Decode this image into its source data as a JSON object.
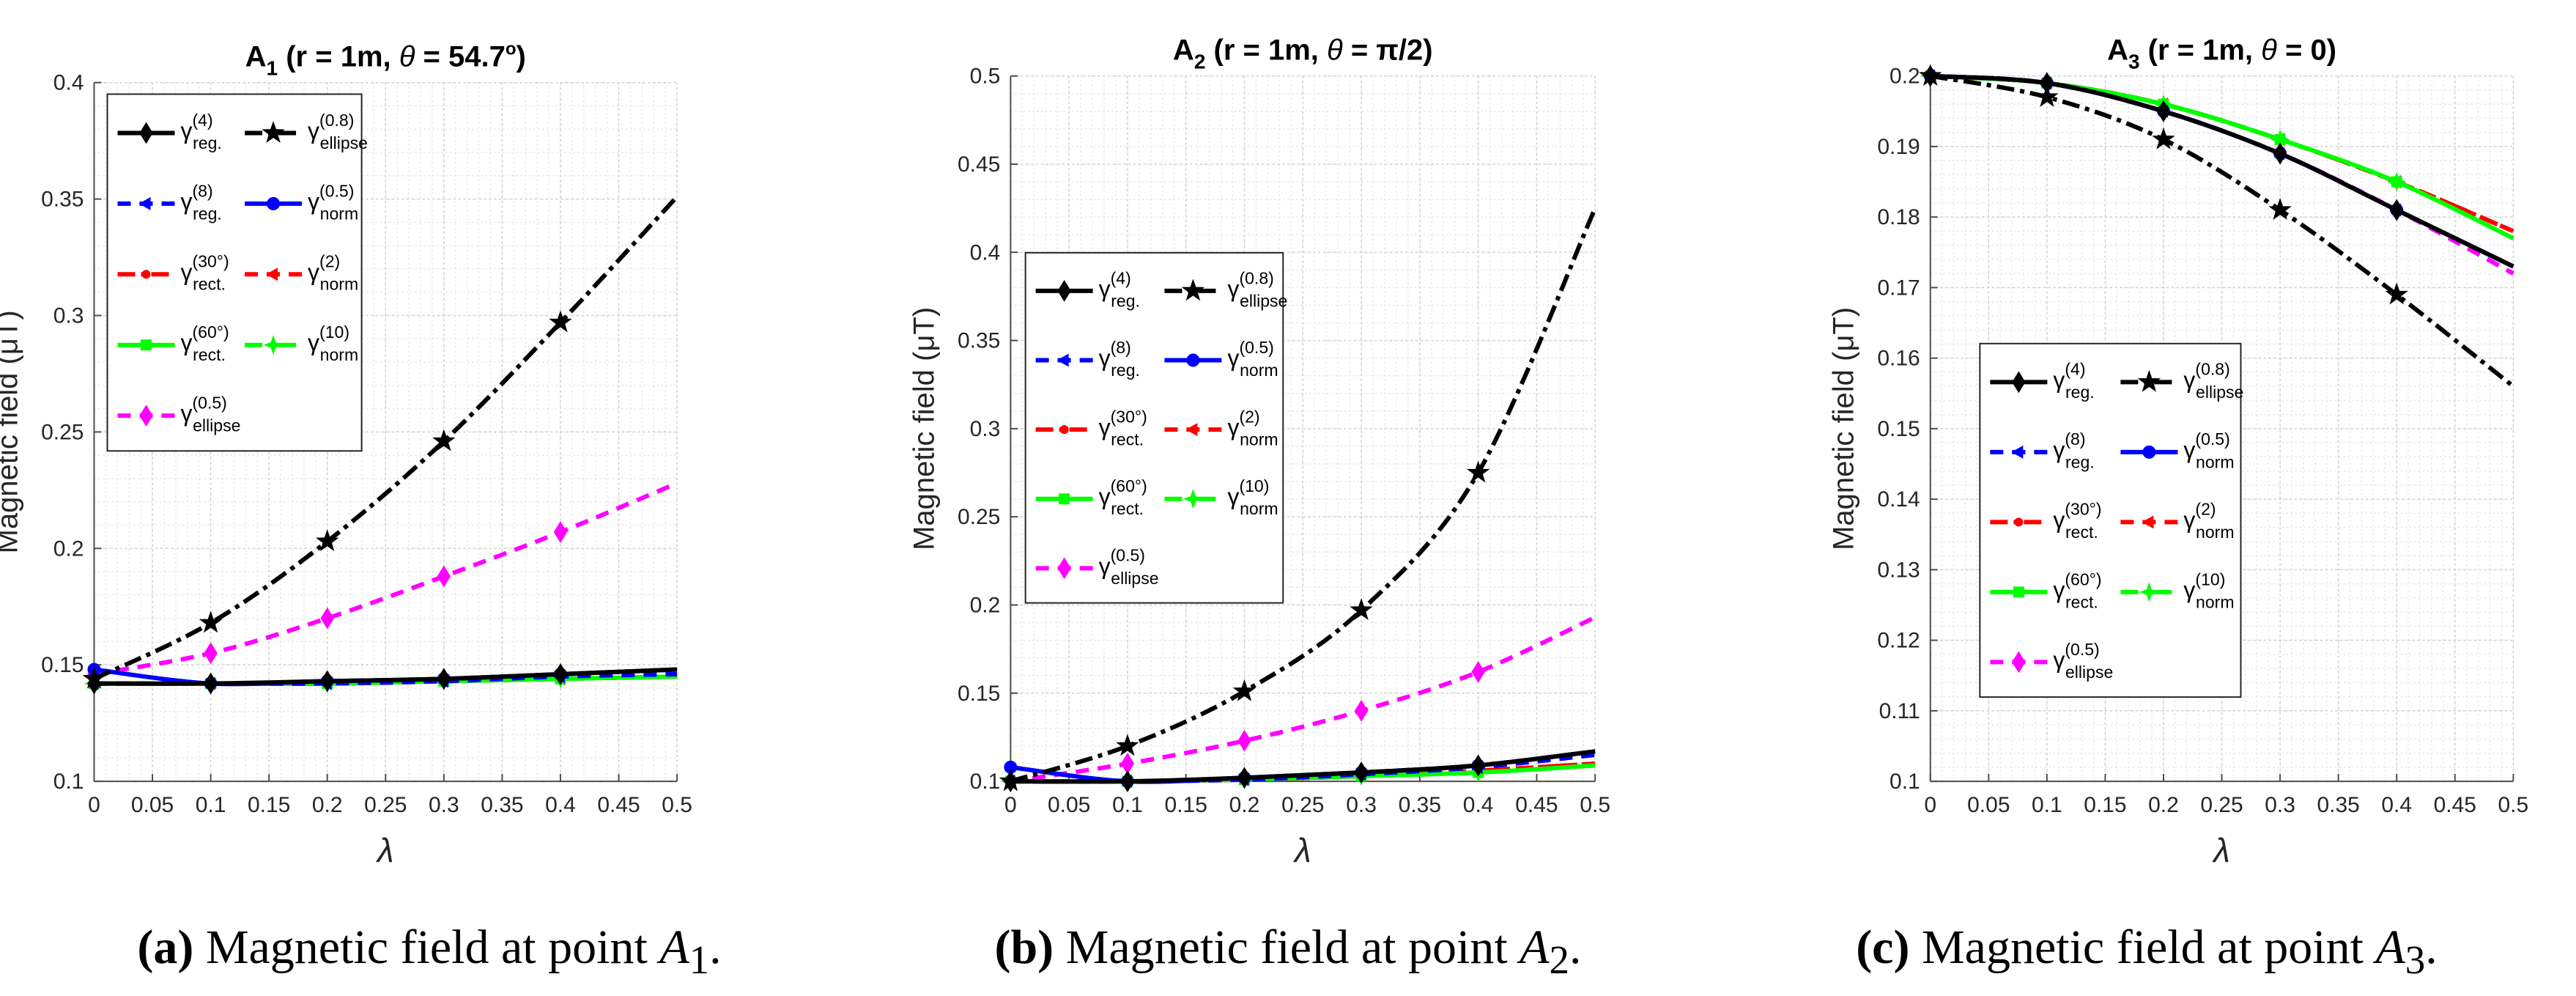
{
  "chart_data": [
    {
      "type": "line",
      "title": "A1 (r = 1m, θ = 54.7°)",
      "title_parts": {
        "main": "A",
        "sub": "1",
        "rest": " (r = 1m, ",
        "theta": "θ",
        "eq": " = 54.7",
        "deg": "o",
        "close": ")"
      },
      "xlabel": "λ",
      "ylabel": "Magnetic field (μT)",
      "xlim": [
        0,
        0.5
      ],
      "ylim": [
        0.1,
        0.4
      ],
      "xticks": [
        "0",
        "0.05",
        "0.1",
        "0.15",
        "0.2",
        "0.25",
        "0.3",
        "0.35",
        "0.4",
        "0.45",
        "0.5"
      ],
      "yticks": [
        "0.1",
        "0.15",
        "0.2",
        "0.25",
        "0.3",
        "0.35",
        "0.4"
      ],
      "grid": true,
      "legend_placement": "top-left",
      "series": [
        {
          "key": "reg4",
          "x": [
            0,
            0.1,
            0.2,
            0.3,
            0.4,
            0.5
          ],
          "y": [
            0.142,
            0.142,
            0.143,
            0.144,
            0.146,
            0.148
          ]
        },
        {
          "key": "reg8",
          "x": [
            0,
            0.1,
            0.2,
            0.3,
            0.4,
            0.5
          ],
          "y": [
            0.142,
            0.142,
            0.142,
            0.143,
            0.145,
            0.146
          ]
        },
        {
          "key": "rect30",
          "x": [
            0,
            0.1,
            0.2,
            0.3,
            0.4,
            0.5
          ],
          "y": [
            0.142,
            0.142,
            0.142,
            0.143,
            0.144,
            0.145
          ]
        },
        {
          "key": "rect60",
          "x": [
            0,
            0.1,
            0.2,
            0.3,
            0.4,
            0.5
          ],
          "y": [
            0.142,
            0.142,
            0.142,
            0.143,
            0.144,
            0.145
          ]
        },
        {
          "key": "ellipse05",
          "x": [
            0,
            0.1,
            0.2,
            0.3,
            0.4,
            0.5
          ],
          "y": [
            0.146,
            0.155,
            0.17,
            0.188,
            0.207,
            0.228
          ]
        },
        {
          "key": "ellipse08",
          "x": [
            0,
            0.1,
            0.2,
            0.3,
            0.4,
            0.5
          ],
          "y": [
            0.144,
            0.168,
            0.203,
            0.246,
            0.297,
            0.351
          ]
        },
        {
          "key": "norm05",
          "x": [
            0,
            0.1,
            0.2,
            0.3,
            0.4,
            0.5
          ],
          "y": [
            0.148,
            0.142,
            0.143,
            0.144,
            0.146,
            0.148
          ]
        },
        {
          "key": "norm2",
          "x": [
            0,
            0.1,
            0.2,
            0.3,
            0.4,
            0.5
          ],
          "y": [
            0.142,
            0.142,
            0.142,
            0.143,
            0.144,
            0.145
          ]
        },
        {
          "key": "norm10",
          "x": [
            0,
            0.1,
            0.2,
            0.3,
            0.4,
            0.5
          ],
          "y": [
            0.142,
            0.142,
            0.142,
            0.143,
            0.144,
            0.145
          ]
        }
      ]
    },
    {
      "type": "line",
      "title": "A2 (r = 1m, θ = π/2)",
      "title_parts": {
        "main": "A",
        "sub": "2",
        "rest": " (r = 1m, ",
        "theta": "θ",
        "eq": " = π/2",
        "deg": "",
        "close": ")"
      },
      "xlabel": "λ",
      "ylabel": "Magnetic field (μT)",
      "xlim": [
        0,
        0.5
      ],
      "ylim": [
        0.1,
        0.5
      ],
      "xticks": [
        "0",
        "0.05",
        "0.1",
        "0.15",
        "0.2",
        "0.25",
        "0.3",
        "0.35",
        "0.4",
        "0.45",
        "0.5"
      ],
      "yticks": [
        "0.1",
        "0.15",
        "0.2",
        "0.25",
        "0.3",
        "0.35",
        "0.4",
        "0.45",
        "0.5"
      ],
      "grid": true,
      "legend_placement": "upper-left",
      "series": [
        {
          "key": "reg4",
          "x": [
            0,
            0.1,
            0.2,
            0.3,
            0.4,
            0.5
          ],
          "y": [
            0.1,
            0.1,
            0.102,
            0.105,
            0.109,
            0.117
          ]
        },
        {
          "key": "reg8",
          "x": [
            0,
            0.1,
            0.2,
            0.3,
            0.4,
            0.5
          ],
          "y": [
            0.1,
            0.1,
            0.101,
            0.104,
            0.108,
            0.115
          ]
        },
        {
          "key": "rect30",
          "x": [
            0,
            0.1,
            0.2,
            0.3,
            0.4,
            0.5
          ],
          "y": [
            0.1,
            0.1,
            0.101,
            0.103,
            0.106,
            0.11
          ]
        },
        {
          "key": "rect60",
          "x": [
            0,
            0.1,
            0.2,
            0.3,
            0.4,
            0.5
          ],
          "y": [
            0.1,
            0.1,
            0.101,
            0.103,
            0.105,
            0.109
          ]
        },
        {
          "key": "ellipse05",
          "x": [
            0,
            0.1,
            0.2,
            0.3,
            0.4,
            0.5
          ],
          "y": [
            0.1,
            0.11,
            0.123,
            0.14,
            0.162,
            0.193
          ]
        },
        {
          "key": "ellipse08",
          "x": [
            0,
            0.1,
            0.2,
            0.3,
            0.4,
            0.5
          ],
          "y": [
            0.1,
            0.12,
            0.151,
            0.197,
            0.275,
            0.425
          ]
        },
        {
          "key": "norm05",
          "x": [
            0,
            0.1,
            0.2,
            0.3,
            0.4,
            0.5
          ],
          "y": [
            0.108,
            0.1,
            0.102,
            0.105,
            0.109,
            0.117
          ]
        },
        {
          "key": "norm2",
          "x": [
            0,
            0.1,
            0.2,
            0.3,
            0.4,
            0.5
          ],
          "y": [
            0.1,
            0.1,
            0.101,
            0.103,
            0.106,
            0.11
          ]
        },
        {
          "key": "norm10",
          "x": [
            0,
            0.1,
            0.2,
            0.3,
            0.4,
            0.5
          ],
          "y": [
            0.1,
            0.1,
            0.101,
            0.103,
            0.105,
            0.109
          ]
        }
      ]
    },
    {
      "type": "line",
      "title": "A3 (r = 1m, θ = 0)",
      "title_parts": {
        "main": "A",
        "sub": "3",
        "rest": " (r = 1m, ",
        "theta": "θ",
        "eq": " = 0",
        "deg": "",
        "close": ")"
      },
      "xlabel": "λ",
      "ylabel": "Magnetic field (μT)",
      "xlim": [
        0,
        0.5
      ],
      "ylim": [
        0.1,
        0.2
      ],
      "xticks": [
        "0",
        "0.05",
        "0.1",
        "0.15",
        "0.2",
        "0.25",
        "0.3",
        "0.35",
        "0.4",
        "0.45",
        "0.5"
      ],
      "yticks": [
        "0.1",
        "0.11",
        "0.12",
        "0.13",
        "0.14",
        "0.15",
        "0.16",
        "0.17",
        "0.18",
        "0.19",
        "0.2"
      ],
      "grid": true,
      "legend_placement": "lower-left",
      "series": [
        {
          "key": "reg4",
          "x": [
            0,
            0.1,
            0.2,
            0.3,
            0.4,
            0.5
          ],
          "y": [
            0.2,
            0.199,
            0.195,
            0.189,
            0.181,
            0.173
          ]
        },
        {
          "key": "reg8",
          "x": [
            0,
            0.1,
            0.2,
            0.3,
            0.4,
            0.5
          ],
          "y": [
            0.2,
            0.199,
            0.195,
            0.189,
            0.181,
            0.172
          ]
        },
        {
          "key": "rect30",
          "x": [
            0,
            0.1,
            0.2,
            0.3,
            0.4,
            0.5
          ],
          "y": [
            0.2,
            0.199,
            0.196,
            0.191,
            0.185,
            0.178
          ]
        },
        {
          "key": "rect60",
          "x": [
            0,
            0.1,
            0.2,
            0.3,
            0.4,
            0.5
          ],
          "y": [
            0.2,
            0.199,
            0.196,
            0.191,
            0.185,
            0.177
          ]
        },
        {
          "key": "ellipse05",
          "x": [
            0,
            0.1,
            0.2,
            0.3,
            0.4,
            0.5
          ],
          "y": [
            0.2,
            0.199,
            0.195,
            0.189,
            0.181,
            0.172
          ]
        },
        {
          "key": "ellipse08",
          "x": [
            0,
            0.1,
            0.2,
            0.3,
            0.4,
            0.5
          ],
          "y": [
            0.2,
            0.197,
            0.191,
            0.181,
            0.169,
            0.156
          ]
        },
        {
          "key": "norm05",
          "x": [
            0,
            0.1,
            0.2,
            0.3,
            0.4,
            0.5
          ],
          "y": [
            0.2,
            0.199,
            0.195,
            0.189,
            0.181,
            0.173
          ]
        },
        {
          "key": "norm2",
          "x": [
            0,
            0.1,
            0.2,
            0.3,
            0.4,
            0.5
          ],
          "y": [
            0.2,
            0.199,
            0.196,
            0.191,
            0.185,
            0.178
          ]
        },
        {
          "key": "norm10",
          "x": [
            0,
            0.1,
            0.2,
            0.3,
            0.4,
            0.5
          ],
          "y": [
            0.2,
            0.199,
            0.196,
            0.191,
            0.185,
            0.177
          ]
        }
      ]
    }
  ],
  "legend_entries": [
    {
      "key": "reg4",
      "symbol": "γ",
      "sup": "(4)",
      "sub": "reg.",
      "color": "#000000",
      "dash": "",
      "marker": "diamond"
    },
    {
      "key": "ellipse08",
      "symbol": "γ",
      "sup": "(0.8)",
      "sub": "ellipse",
      "color": "#000000",
      "dash": "24,8,6,8",
      "marker": "star"
    },
    {
      "key": "reg8",
      "symbol": "γ",
      "sup": "(8)",
      "sub": "reg.",
      "color": "#0000ff",
      "dash": "18,12",
      "marker": "arrow"
    },
    {
      "key": "norm05",
      "symbol": "γ",
      "sup": "(0.5)",
      "sub": "norm",
      "color": "#0000ff",
      "dash": "",
      "marker": "circle"
    },
    {
      "key": "rect30",
      "symbol": "γ",
      "sup": "(30°)",
      "sub": "rect.",
      "color": "#ff0000",
      "dash": "24,8,6,8",
      "marker": "dot"
    },
    {
      "key": "norm2",
      "symbol": "γ",
      "sup": "(2)",
      "sub": "norm",
      "color": "#ff0000",
      "dash": "18,12",
      "marker": "arrow"
    },
    {
      "key": "rect60",
      "symbol": "γ",
      "sup": "(60°)",
      "sub": "rect.",
      "color": "#00ff00",
      "dash": "",
      "marker": "square"
    },
    {
      "key": "norm10",
      "symbol": "γ",
      "sup": "(10)",
      "sub": "norm",
      "color": "#00ff00",
      "dash": "24,8,6,8",
      "marker": "star4"
    },
    {
      "key": "ellipse05",
      "symbol": "γ",
      "sup": "(0.5)",
      "sub": "ellipse",
      "color": "#ff00ff",
      "dash": "18,12",
      "marker": "diamond"
    }
  ],
  "captions": [
    {
      "label": "(a)",
      "text": "Magnetic field at point ",
      "var": "A",
      "sub": "1",
      "end": "."
    },
    {
      "label": "(b)",
      "text": "Magnetic field at point ",
      "var": "A",
      "sub": "2",
      "end": "."
    },
    {
      "label": "(c)",
      "text": "Magnetic field at point ",
      "var": "A",
      "sub": "3",
      "end": "."
    }
  ]
}
